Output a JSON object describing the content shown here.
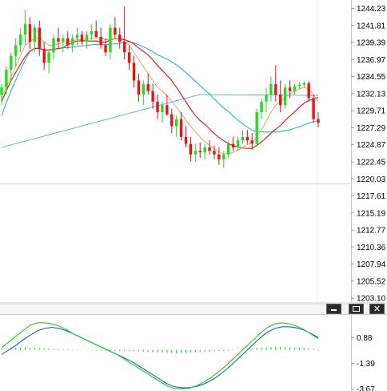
{
  "chart_data": [
    {
      "type": "candlestick",
      "y_ticks": [
        "1244.23",
        "1241.81",
        "1239.39",
        "1236.97",
        "1234.55",
        "1232.13",
        "1229.71",
        "1227.29",
        "1224.87",
        "1222.45",
        "1220.03",
        "1217.61",
        "1215.19",
        "1212.77",
        "1210.36",
        "1207.94",
        "1205.52",
        "1203.10"
      ],
      "ylim": [
        1202.2,
        1245.2
      ],
      "colors": {
        "up": "#22dd22",
        "down": "#ee1111",
        "ma_fast": "#e0a060",
        "ma_mid": "#dd2222",
        "ma_slow": "#22bbcc",
        "ma_long": "#55a8d8"
      },
      "candles": [
        [
          1232,
          1233.5,
          1230.5,
          1233
        ],
        [
          1233,
          1236,
          1232,
          1235.5
        ],
        [
          1235.5,
          1238,
          1234,
          1237.5
        ],
        [
          1237.5,
          1240,
          1236,
          1239
        ],
        [
          1239,
          1241.5,
          1238,
          1240.5
        ],
        [
          1240.5,
          1244,
          1239,
          1242
        ],
        [
          1242,
          1243,
          1238.5,
          1239.5
        ],
        [
          1239.5,
          1242,
          1238,
          1241.5
        ],
        [
          1241.5,
          1242.5,
          1237.5,
          1238.5
        ],
        [
          1238.5,
          1239.5,
          1235.5,
          1236.5
        ],
        [
          1236.5,
          1238.5,
          1235,
          1238
        ],
        [
          1238,
          1240.5,
          1237,
          1240
        ],
        [
          1240,
          1241.5,
          1238.5,
          1239.5
        ],
        [
          1239.5,
          1240.5,
          1238,
          1240
        ],
        [
          1240,
          1241,
          1238.5,
          1239
        ],
        [
          1239,
          1240.5,
          1238,
          1240
        ],
        [
          1240,
          1241.5,
          1239,
          1240.5
        ],
        [
          1240.5,
          1241,
          1239,
          1239.5
        ],
        [
          1239.5,
          1241,
          1238.5,
          1240.5
        ],
        [
          1240.5,
          1242,
          1239.5,
          1241
        ],
        [
          1241,
          1242.5,
          1240,
          1240.2
        ],
        [
          1240.2,
          1241.5,
          1238.5,
          1239
        ],
        [
          1239,
          1240,
          1237.5,
          1238
        ],
        [
          1238,
          1242,
          1237,
          1241.5
        ],
        [
          1241.5,
          1243,
          1240,
          1240.5
        ],
        [
          1240.5,
          1241.5,
          1238.5,
          1239.5
        ],
        [
          1239.5,
          1244.5,
          1237,
          1238
        ],
        [
          1238,
          1239,
          1235.5,
          1236.5
        ],
        [
          1236.5,
          1237.5,
          1233,
          1234
        ],
        [
          1234,
          1235,
          1231,
          1232
        ],
        [
          1232,
          1234,
          1230.5,
          1233.5
        ],
        [
          1233.5,
          1235,
          1232,
          1232.5
        ],
        [
          1232.5,
          1233.5,
          1230,
          1231
        ],
        [
          1231,
          1232,
          1228.5,
          1229.5
        ],
        [
          1229.5,
          1231,
          1228,
          1230.5
        ],
        [
          1230.5,
          1232,
          1229,
          1229.2
        ],
        [
          1229.2,
          1230,
          1226.5,
          1227.5
        ],
        [
          1227.5,
          1229,
          1226,
          1228.5
        ],
        [
          1228.5,
          1229.5,
          1225.5,
          1226
        ],
        [
          1226,
          1227.5,
          1224.5,
          1225
        ],
        [
          1225,
          1226,
          1222.5,
          1223.5
        ],
        [
          1223.5,
          1225,
          1222.5,
          1224
        ],
        [
          1224,
          1225.2,
          1223,
          1223.8
        ],
        [
          1223.8,
          1225,
          1222.8,
          1224.5
        ],
        [
          1224.5,
          1225.5,
          1223.5,
          1224
        ],
        [
          1224,
          1224.8,
          1222.8,
          1223.5
        ],
        [
          1223.5,
          1224.5,
          1222,
          1222.8
        ],
        [
          1222.8,
          1224,
          1221.6,
          1223.5
        ],
        [
          1223.5,
          1225.5,
          1223,
          1225
        ],
        [
          1225,
          1226,
          1224,
          1224.5
        ],
        [
          1224.5,
          1226,
          1224,
          1225.5
        ],
        [
          1225.5,
          1227,
          1225,
          1226
        ],
        [
          1226,
          1227,
          1225,
          1225.5
        ],
        [
          1225.5,
          1226.5,
          1224.2,
          1225
        ],
        [
          1225,
          1230,
          1224.5,
          1229.5
        ],
        [
          1229.5,
          1231.5,
          1228.5,
          1231
        ],
        [
          1231,
          1233,
          1229.5,
          1232
        ],
        [
          1232,
          1234.5,
          1231,
          1233.5
        ],
        [
          1233.5,
          1236.2,
          1231,
          1232
        ],
        [
          1232,
          1234,
          1229.5,
          1230.5
        ],
        [
          1230.5,
          1233.5,
          1230,
          1233
        ],
        [
          1233,
          1234,
          1231.5,
          1232.5
        ],
        [
          1232.5,
          1233.5,
          1232,
          1233.2
        ],
        [
          1233.2,
          1233.8,
          1232.8,
          1233.4
        ],
        [
          1233.4,
          1233.9,
          1233,
          1233.6
        ],
        [
          1233.6,
          1233.9,
          1231,
          1231.5
        ],
        [
          1231.5,
          1232,
          1228,
          1228.5
        ],
        [
          1228.5,
          1229.5,
          1227.3,
          1228
        ]
      ],
      "ma_fast": [
        1231.5,
        1233,
        1234.5,
        1236,
        1237.5,
        1239,
        1239.5,
        1240,
        1240,
        1239.5,
        1239,
        1239,
        1239.2,
        1239.4,
        1239.5,
        1239.6,
        1239.8,
        1239.8,
        1239.9,
        1240,
        1240.1,
        1240,
        1239.8,
        1239.8,
        1240,
        1239.8,
        1239.5,
        1239,
        1238,
        1237,
        1236,
        1235,
        1234,
        1233,
        1232.5,
        1231.8,
        1231,
        1230.2,
        1229.3,
        1228.4,
        1227.5,
        1226.7,
        1226,
        1225.3,
        1224.8,
        1224.3,
        1223.9,
        1223.6,
        1223.6,
        1223.8,
        1224.1,
        1224.5,
        1224.9,
        1225.2,
        1226,
        1227,
        1228.2,
        1229.5,
        1230.5,
        1231,
        1231.6,
        1232.1,
        1232.5,
        1232.8,
        1233,
        1232.8,
        1232,
        1231
      ]
    },
    {
      "type": "oscillator",
      "y_ticks": [
        "0.88",
        "-1.39",
        "-3.67"
      ],
      "ylim": [
        -3.7,
        2.4
      ],
      "histogram": [
        0.6,
        0.7,
        0.8,
        0.9,
        0.95,
        1.0,
        0.9,
        0.8,
        0.7,
        0.6,
        0.5,
        0.45,
        0.4,
        0.35,
        0.3,
        0.2,
        0.1,
        0.0,
        -0.1,
        -0.2,
        -0.3,
        -0.35,
        -0.4,
        -0.45,
        -0.5,
        -0.5,
        -0.5,
        -0.5,
        -0.5,
        -0.6,
        -0.7,
        -0.8,
        -0.9,
        -1.0,
        -1.1,
        -1.2,
        -1.3,
        -1.4,
        -1.3,
        -1.2,
        -1.1,
        -1.0,
        -0.9,
        -0.8,
        -0.7,
        -0.6,
        -0.5,
        -0.4,
        -0.3,
        -0.2,
        -0.1,
        0.1,
        0.3,
        0.5,
        0.7,
        0.9,
        1.0,
        1.1,
        1.2,
        1.3,
        1.2,
        1.1,
        1.0,
        0.9,
        0.8,
        0.6,
        0.4,
        -0.3
      ],
      "line_fast": [
        0.0,
        0.5,
        1.0,
        1.5,
        2.0,
        2.2,
        2.2,
        2.1,
        1.9,
        1.6,
        1.2,
        0.9,
        0.6,
        0.3,
        0.0,
        -0.3,
        -0.6,
        -1.0,
        -1.4,
        -1.8,
        -2.2,
        -2.6,
        -3.0,
        -3.4,
        -3.6,
        -3.65,
        -3.6,
        -3.4,
        -3.1,
        -2.7,
        -2.2,
        -1.7,
        -1.1,
        -0.5,
        0.1,
        0.7,
        1.3,
        1.8,
        2.1,
        2.2,
        2.1,
        1.9,
        1.6,
        1.2,
        0.8
      ],
      "line_slow": [
        -0.6,
        -0.2,
        0.2,
        0.7,
        1.1,
        1.5,
        1.7,
        1.8,
        1.7,
        1.5,
        1.2,
        0.9,
        0.6,
        0.3,
        0.0,
        -0.3,
        -0.6,
        -0.9,
        -1.2,
        -1.6,
        -2.0,
        -2.4,
        -2.8,
        -3.2,
        -3.45,
        -3.55,
        -3.55,
        -3.45,
        -3.25,
        -2.95,
        -2.55,
        -2.05,
        -1.5,
        -0.9,
        -0.3,
        0.3,
        0.9,
        1.4,
        1.7,
        1.85,
        1.85,
        1.75,
        1.55,
        1.25,
        0.9
      ]
    }
  ]
}
